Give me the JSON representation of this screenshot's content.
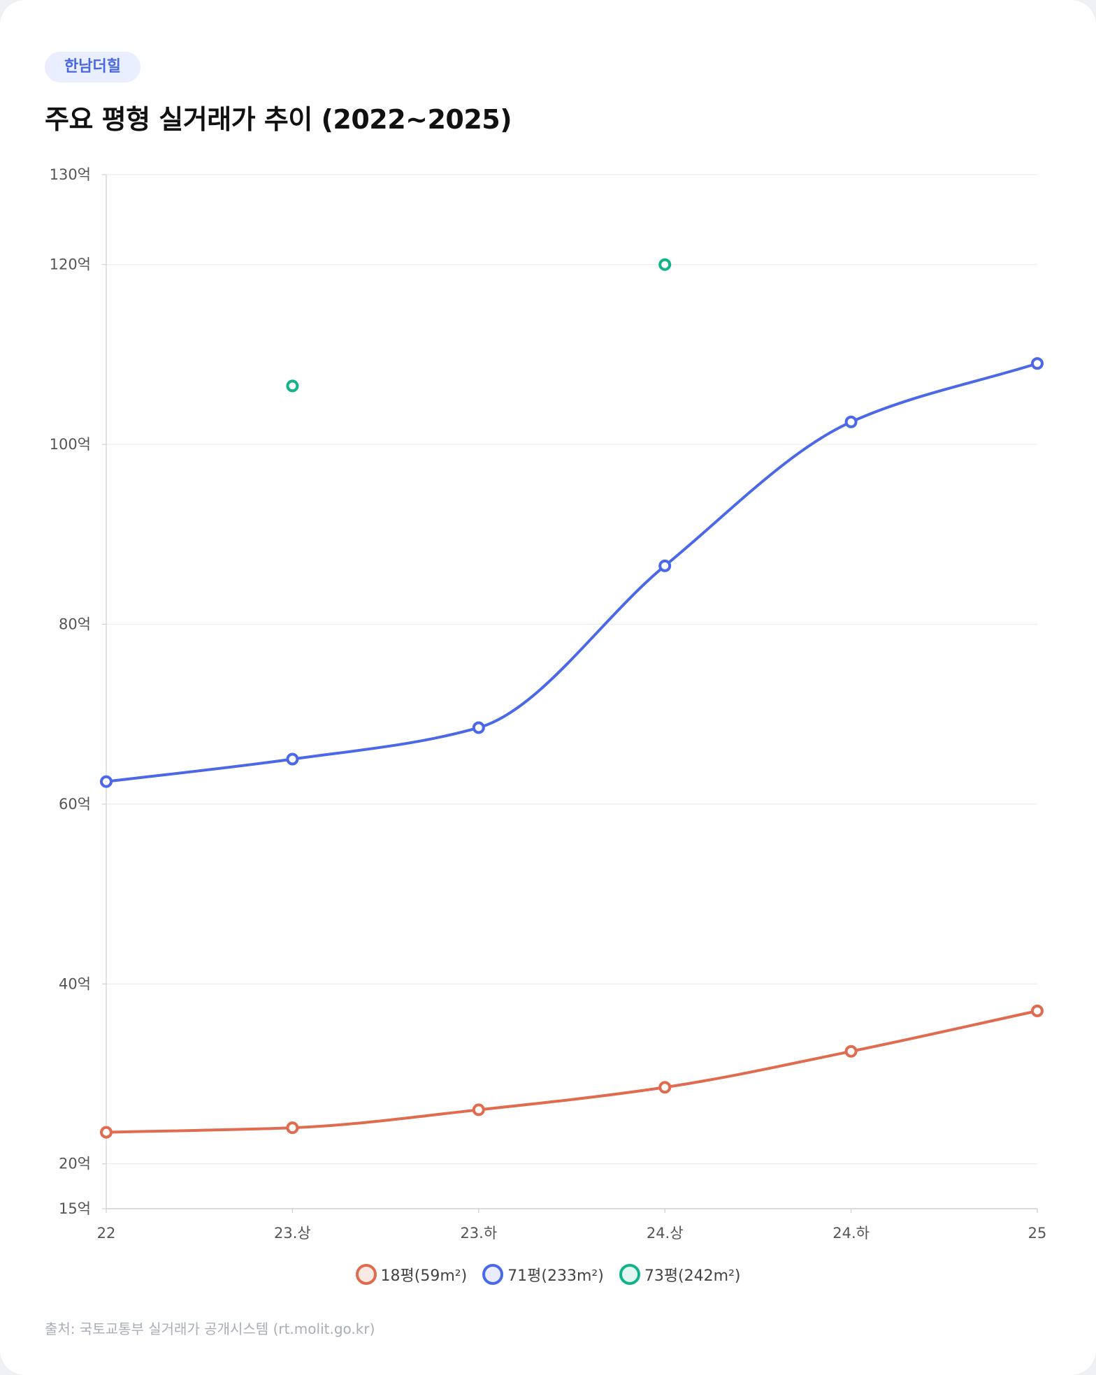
{
  "badge": "한남더힐",
  "title": "주요 평형 실거래가 추이 (2022~2025)",
  "source": "출처: 국토교통부 실거래가 공개시스템 (rt.molit.go.kr)",
  "chart_data": {
    "type": "line",
    "title": "주요 평형 실거래가 추이 (2022~2025)",
    "categories": [
      "22",
      "23.상",
      "23.하",
      "24.상",
      "24.하",
      "25"
    ],
    "ylim": [
      15,
      130
    ],
    "yticks": [
      15,
      20,
      40,
      60,
      80,
      100,
      120,
      130
    ],
    "ytick_suffix": "억",
    "grid": true,
    "legend_position": "bottom",
    "series": [
      {
        "name": "18평(59m²)",
        "color": "#e06b4f",
        "fill": "#fbe9e4",
        "values": [
          23.5,
          24,
          26,
          28.5,
          32.5,
          37
        ],
        "style": "line"
      },
      {
        "name": "71평(233m²)",
        "color": "#4a68e8",
        "fill": "#e8ecfd",
        "values": [
          62.5,
          65,
          68.5,
          86.5,
          102.5,
          109
        ],
        "style": "line"
      },
      {
        "name": "73평(242m²)",
        "color": "#10b38a",
        "fill": "#e2f6ef",
        "values": [
          null,
          106.5,
          null,
          120,
          null,
          null
        ],
        "style": "points"
      }
    ]
  }
}
